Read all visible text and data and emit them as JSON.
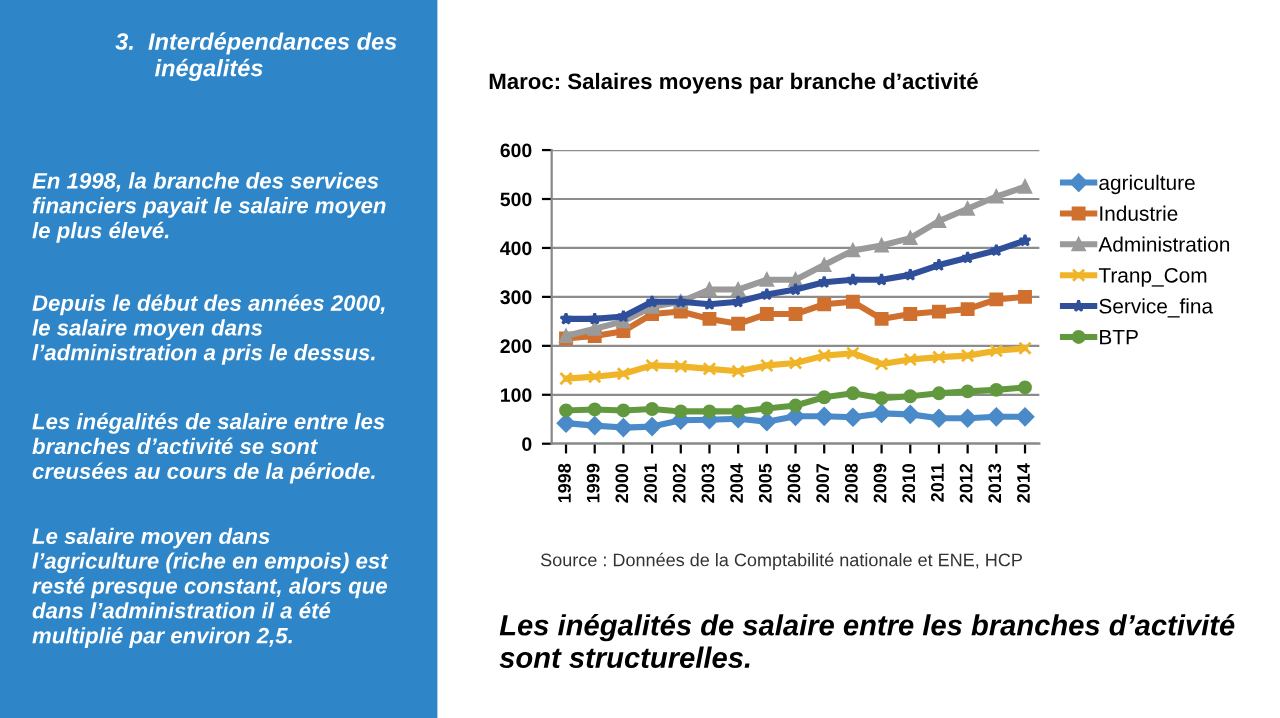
{
  "chart_data": {
    "type": "line",
    "title": "Maroc: Salaires moyens par branche d’activité",
    "categories": [
      "1998",
      "1999",
      "2000",
      "2001",
      "2002",
      "2003",
      "2004",
      "2005",
      "2006",
      "2007",
      "2008",
      "2009",
      "2010",
      "2011",
      "2012",
      "2013",
      "2014"
    ],
    "series": [
      {
        "name": "agriculture",
        "color": "#4a8ac8",
        "marker": "diamond",
        "values": [
          42,
          37,
          33,
          35,
          48,
          49,
          51,
          45,
          56,
          56,
          54,
          62,
          60,
          52,
          52,
          55,
          55
        ]
      },
      {
        "name": "Industrie",
        "color": "#d0702e",
        "marker": "square",
        "values": [
          215,
          220,
          230,
          265,
          270,
          255,
          245,
          265,
          265,
          285,
          290,
          255,
          265,
          270,
          275,
          295,
          300
        ]
      },
      {
        "name": "Administration",
        "color": "#9a9a9a",
        "marker": "triangle",
        "values": [
          220,
          235,
          250,
          280,
          290,
          315,
          315,
          335,
          335,
          365,
          395,
          405,
          420,
          455,
          480,
          505,
          525
        ]
      },
      {
        "name": "Tranp_Com",
        "color": "#f0b428",
        "marker": "cross",
        "values": [
          133,
          137,
          143,
          160,
          158,
          153,
          148,
          160,
          165,
          180,
          185,
          163,
          172,
          177,
          180,
          190,
          195
        ]
      },
      {
        "name": "Service_fina",
        "color": "#2f4f9a",
        "marker": "star",
        "values": [
          255,
          255,
          260,
          290,
          290,
          285,
          290,
          305,
          315,
          330,
          335,
          335,
          345,
          365,
          380,
          395,
          415
        ]
      },
      {
        "name": "BTP",
        "color": "#62993e",
        "marker": "circle",
        "values": [
          68,
          70,
          68,
          71,
          66,
          66,
          66,
          72,
          78,
          95,
          103,
          93,
          97,
          103,
          107,
          110,
          115
        ]
      }
    ],
    "ylim": [
      0,
      600
    ],
    "yticks": [
      0,
      100,
      200,
      300,
      400,
      500,
      600
    ],
    "grid": "y",
    "legend": "right",
    "annotations": [
      "3.  Interdépendances des\n      inégalités",
      "En 1998, la branche des services\nfinanciers payait le salaire moyen\nle plus élevé.",
      "Depuis le début des années 2000,\nle salaire moyen dans\nl’administration a pris le dessus.",
      "Les inégalités de salaire entre les\nbranches d’activité se sont\ncreusées au cours de la période.",
      "Le salaire moyen dans\nl’agriculture (riche en empois) est\nresté presque constant, alors que\ndans l’administration il a été\nmultiplié par environ 2,5.",
      "Source : Données de la Comptabilité nationale et ENE, HCP",
      "Les inégalités de salaire entre les branches d’activité\nsont structurelles."
    ]
  }
}
